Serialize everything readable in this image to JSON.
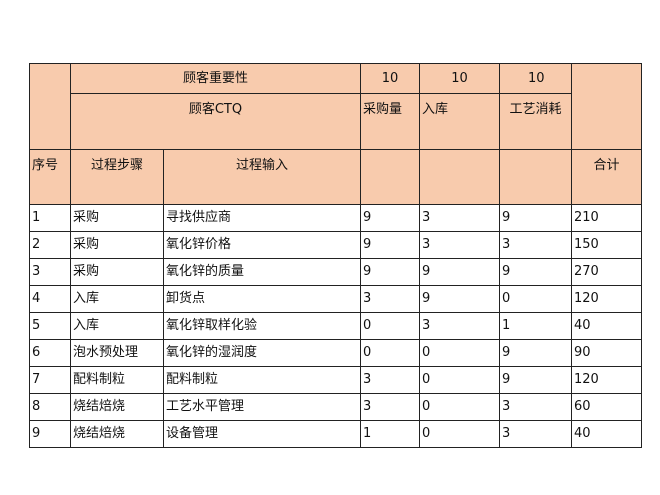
{
  "header": {
    "importance_label": "顾客重要性",
    "ctq_label": "顾客CTQ",
    "importance": [
      "10",
      "10",
      "10"
    ],
    "ctq": [
      "采购量",
      "入库",
      "工艺消耗"
    ],
    "columns": {
      "no": "序号",
      "step": "过程步骤",
      "input": "过程输入",
      "total": "合计"
    }
  },
  "rows": [
    {
      "no": "1",
      "step": "采购",
      "input": "寻找供应商",
      "a": "9",
      "b": "3",
      "c": "9",
      "total": "210"
    },
    {
      "no": "2",
      "step": "采购",
      "input": "氧化锌价格",
      "a": "9",
      "b": "3",
      "c": "3",
      "total": "150"
    },
    {
      "no": "3",
      "step": "采购",
      "input": "氧化锌的质量",
      "a": "9",
      "b": "9",
      "c": "9",
      "total": "270"
    },
    {
      "no": "4",
      "step": "入库",
      "input": "卸货点",
      "a": "3",
      "b": "9",
      "c": "0",
      "total": "120"
    },
    {
      "no": "5",
      "step": "入库",
      "input": "氧化锌取样化验",
      "a": "0",
      "b": "3",
      "c": "1",
      "total": "40"
    },
    {
      "no": "6",
      "step": "泡水预处理",
      "input": "氧化锌的湿润度",
      "a": "0",
      "b": "0",
      "c": "9",
      "total": "90"
    },
    {
      "no": "7",
      "step": "配料制粒",
      "input": "配料制粒",
      "a": "3",
      "b": "0",
      "c": "9",
      "total": "120"
    },
    {
      "no": "8",
      "step": "烧结焙烧",
      "input": "工艺水平管理",
      "a": "3",
      "b": "0",
      "c": "3",
      "total": "60"
    },
    {
      "no": "9",
      "step": "烧结焙烧",
      "input": "设备管理",
      "a": "1",
      "b": "0",
      "c": "3",
      "total": "40"
    }
  ],
  "colors": {
    "header_bg": "#f8cbad",
    "border": "#222222"
  }
}
